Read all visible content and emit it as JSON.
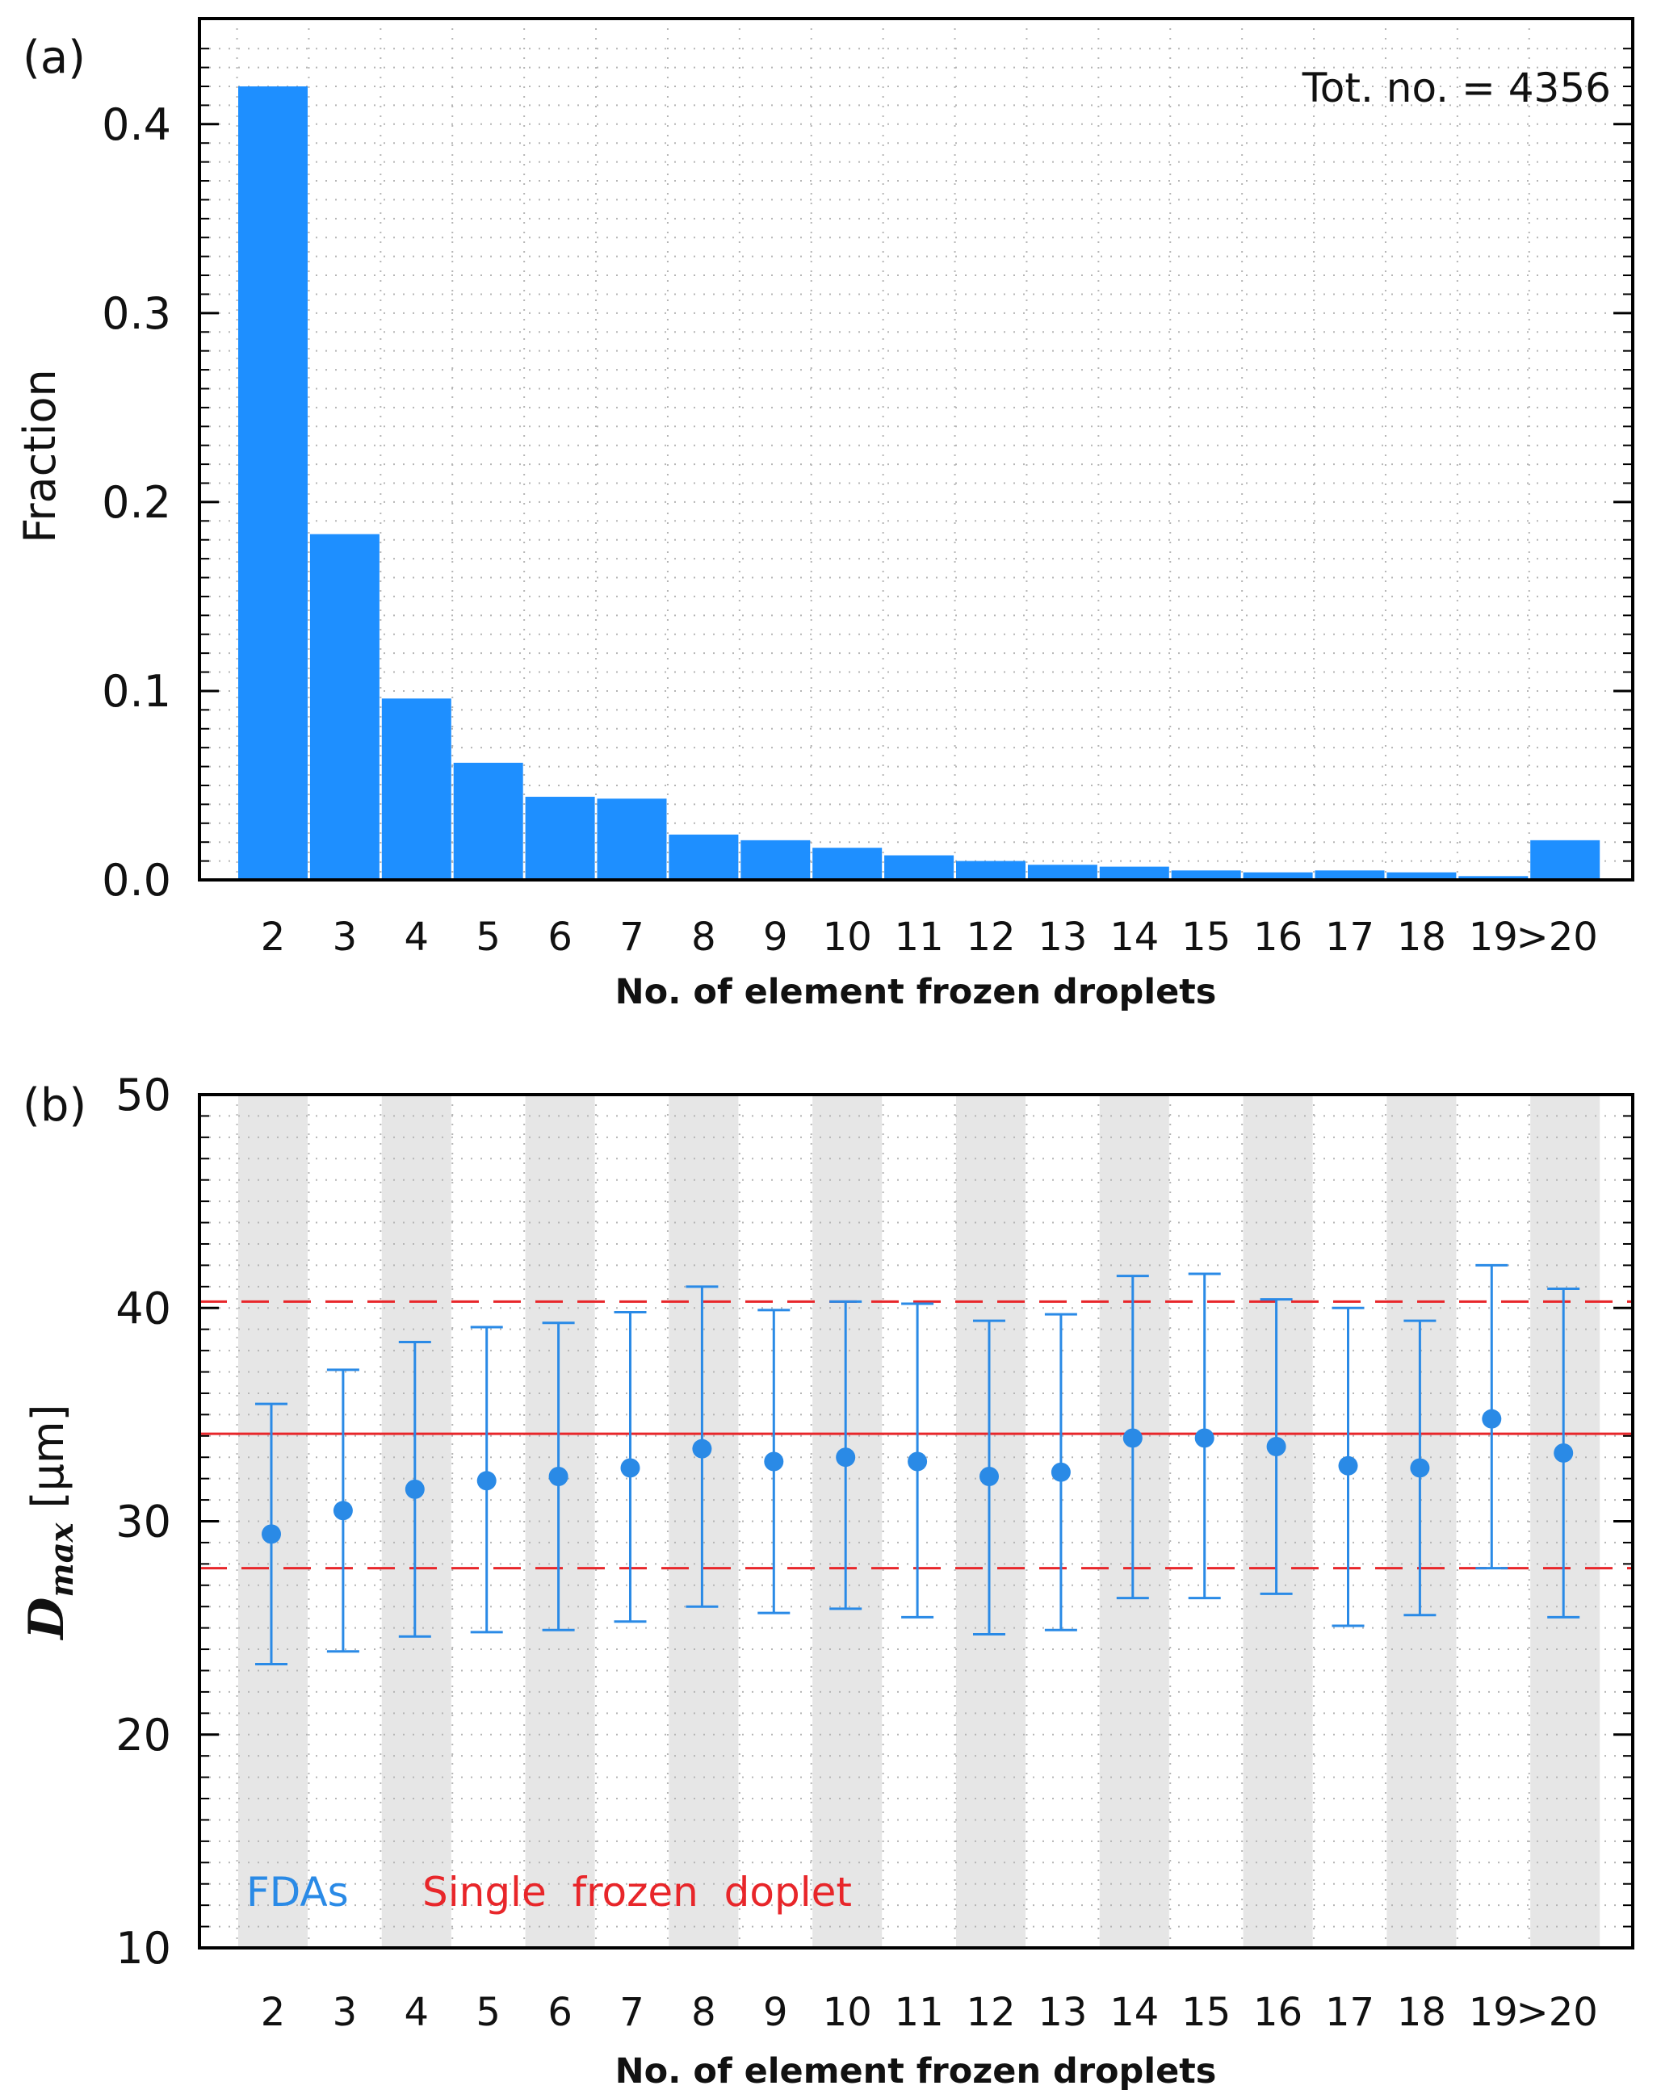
{
  "chart_data": [
    {
      "panel_label": "(a)",
      "type": "bar",
      "categories": [
        "2",
        "3",
        "4",
        "5",
        "6",
        "7",
        "8",
        "9",
        "10",
        "11",
        "12",
        "13",
        "14",
        "15",
        "16",
        "17",
        "18",
        "19",
        ">20"
      ],
      "values": [
        0.42,
        0.183,
        0.096,
        0.062,
        0.044,
        0.043,
        0.024,
        0.021,
        0.017,
        0.013,
        0.01,
        0.008,
        0.007,
        0.005,
        0.004,
        0.005,
        0.004,
        0.002,
        0.021
      ],
      "annotation": "Tot. no. = 4356",
      "xlabel": "No. of element frozen droplets",
      "ylabel": "Fraction",
      "ylim": [
        0,
        0.45
      ],
      "yticks": [
        "0.0",
        "0.1",
        "0.2",
        "0.3",
        "0.4"
      ],
      "ytick_values": [
        0.0,
        0.1,
        0.2,
        0.3,
        0.4
      ],
      "grid": true,
      "bar_color": "#1e8fff"
    },
    {
      "panel_label": "(b)",
      "type": "scatter",
      "categories": [
        "2",
        "3",
        "4",
        "5",
        "6",
        "7",
        "8",
        "9",
        "10",
        "11",
        "12",
        "13",
        "14",
        "15",
        "16",
        "17",
        "18",
        "19",
        ">20"
      ],
      "series": [
        {
          "name": "FDAs",
          "color": "#2a8ae6",
          "values": [
            29.4,
            30.5,
            31.5,
            31.9,
            32.1,
            32.5,
            33.4,
            32.8,
            33.0,
            32.8,
            32.1,
            32.3,
            33.9,
            33.9,
            33.5,
            32.6,
            32.5,
            34.8,
            33.2
          ],
          "upper": [
            35.5,
            37.1,
            38.4,
            39.1,
            39.3,
            39.8,
            41.0,
            39.9,
            40.3,
            40.2,
            39.4,
            39.7,
            41.5,
            41.6,
            40.4,
            40.0,
            39.4,
            42.0,
            40.9
          ],
          "lower": [
            23.3,
            23.9,
            24.6,
            24.8,
            24.9,
            25.3,
            26.0,
            25.7,
            25.9,
            25.5,
            24.7,
            24.9,
            26.4,
            26.4,
            26.6,
            25.1,
            25.6,
            27.8,
            25.5
          ]
        },
        {
          "name": "Single  frozen  doplet",
          "color": "#e8262a",
          "mean": 34.1,
          "upper": 40.3,
          "lower": 27.8
        }
      ],
      "xlabel": "No. of element frozen droplets",
      "ylabel_main": "D",
      "ylabel_sub": "max",
      "ylabel_unit": "[μm]",
      "ylim": [
        10,
        50
      ],
      "yticks": [
        "10",
        "20",
        "30",
        "40",
        "50"
      ],
      "ytick_values": [
        10,
        20,
        30,
        40,
        50
      ],
      "grid": true,
      "shaded_color": "#e6e6e6"
    }
  ]
}
